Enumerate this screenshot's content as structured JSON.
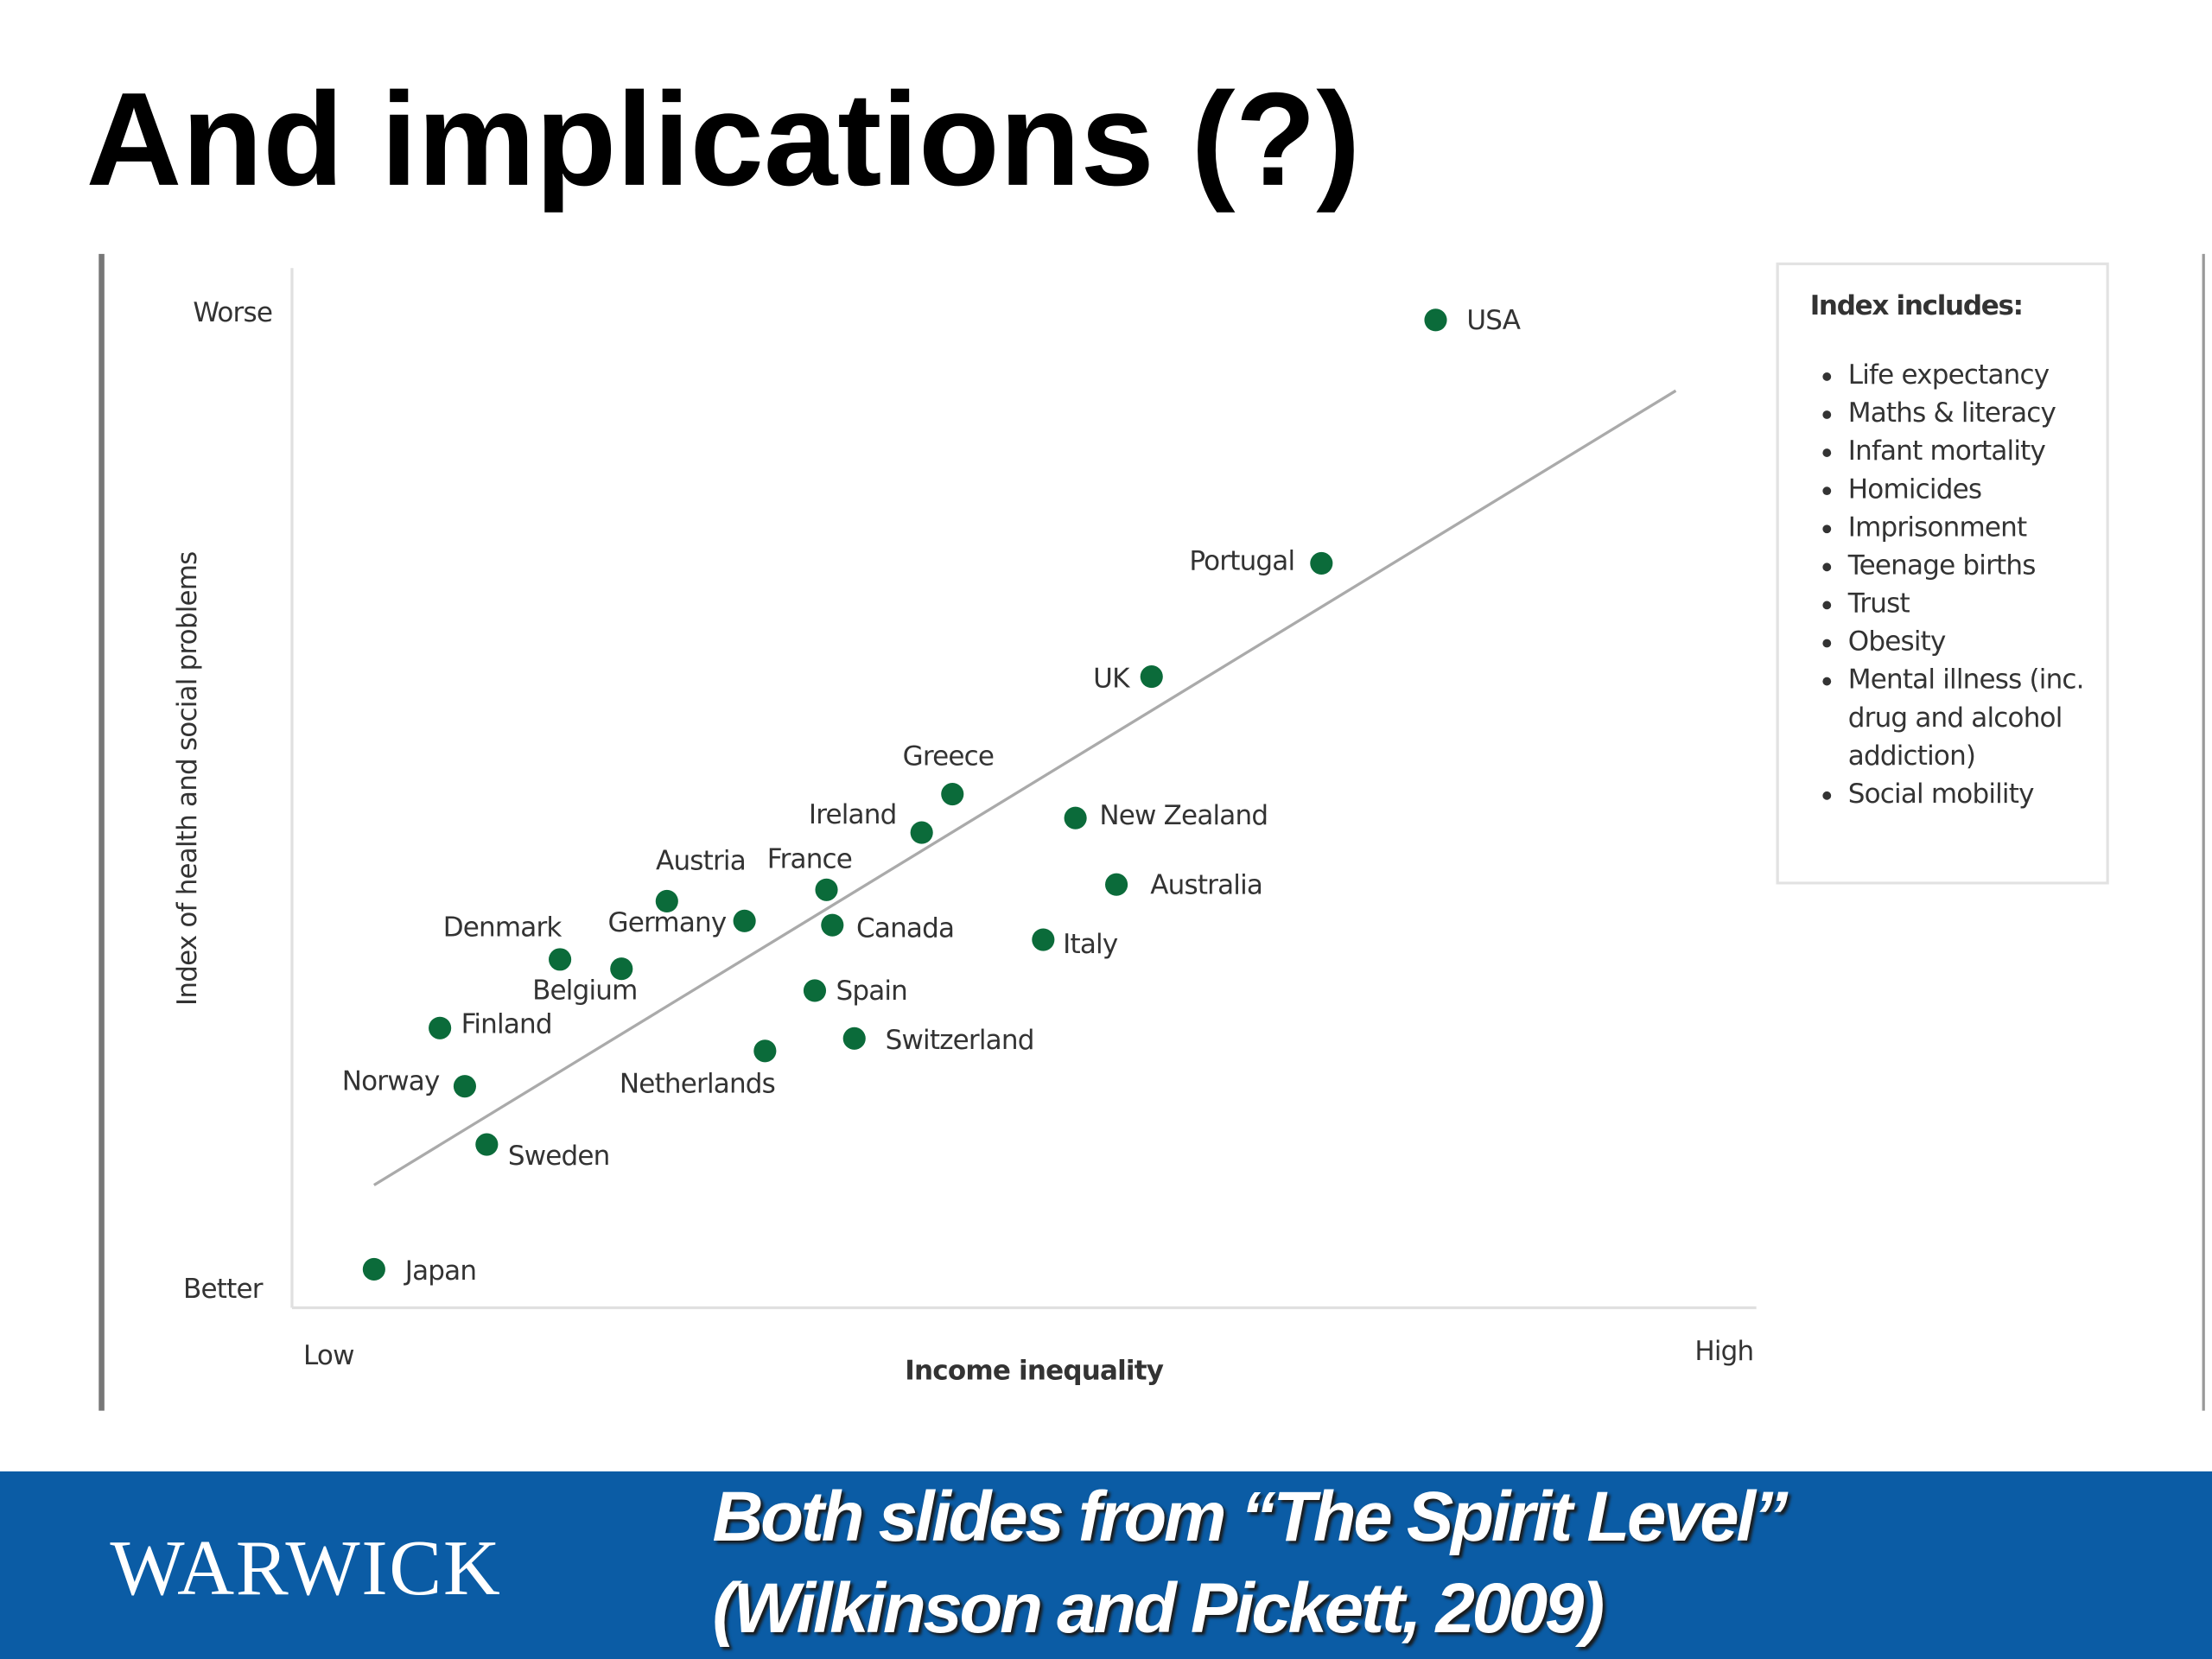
{
  "slide": {
    "title": "And implications (?)",
    "footer": {
      "logo": "WARWICK",
      "lines": [
        "Both slides from “The Spirit Level”",
        "(Wilkinson and Pickett, 2009)"
      ]
    }
  },
  "chart_data": {
    "type": "scatter",
    "x_label": "Income inequality",
    "y_label": "Index of health and social problems",
    "xlim": [
      0,
      100
    ],
    "ylim": [
      0,
      100
    ],
    "xticks": [
      {
        "value": 0,
        "label": "Low"
      },
      {
        "value": 100,
        "label": "High"
      }
    ],
    "yticks": [
      {
        "value": 0,
        "label": "Better"
      },
      {
        "value": 100,
        "label": "Worse"
      }
    ],
    "color": "#0b6b3a",
    "labels": [
      "Japan",
      "Sweden",
      "Norway",
      "Finland",
      "Denmark",
      "Belgium",
      "Austria",
      "Germany",
      "Netherlands",
      "Spain",
      "Switzerland",
      "France",
      "Canada",
      "Ireland",
      "Greece",
      "Italy",
      "Australia",
      "New Zealand",
      "UK",
      "Portugal",
      "USA"
    ],
    "x": [
      5.6,
      13.3,
      11.8,
      10.1,
      18.3,
      22.5,
      25.6,
      30.9,
      32.3,
      35.7,
      38.4,
      36.5,
      36.9,
      43.0,
      45.1,
      51.3,
      56.3,
      53.5,
      58.7,
      70.3,
      78.1
    ],
    "y": [
      3.7,
      15.7,
      21.3,
      26.9,
      33.5,
      32.6,
      39.1,
      37.2,
      24.7,
      30.5,
      25.9,
      40.2,
      36.8,
      45.7,
      49.4,
      35.4,
      40.7,
      47.1,
      60.7,
      71.6,
      95.0
    ],
    "trendline": {
      "x": [
        5.6,
        94.5
      ],
      "y": [
        11.8,
        88.2
      ],
      "color": "#aaaaaa"
    },
    "notes": {
      "title": "Index includes:",
      "items": [
        "Life expectancy",
        "Maths & literacy",
        "Infant mortality",
        "Homicides",
        "Imprisonment",
        "Teenage births",
        "Trust",
        "Obesity",
        "Mental illness (inc. drug and alcohol addiction)",
        "Social mobility"
      ]
    }
  }
}
